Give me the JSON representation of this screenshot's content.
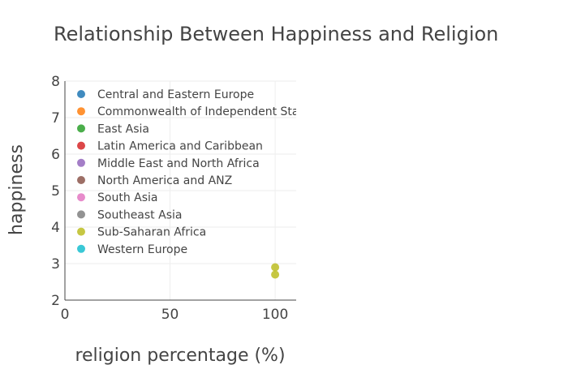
{
  "chart_data": {
    "type": "scatter",
    "title": "Relationship Between Happiness and Religion",
    "xlabel": "religion percentage (%)",
    "ylabel": "happiness",
    "xlim": [
      0,
      110
    ],
    "ylim": [
      2,
      8
    ],
    "xticks": [
      "0",
      "50",
      "100"
    ],
    "yticks": [
      "2",
      "3",
      "4",
      "5",
      "6",
      "7",
      "8"
    ],
    "grid": true,
    "legend_position": "top-left inside plot",
    "series": [
      {
        "name": "Central and Eastern Europe",
        "color": "#1f77b4",
        "points": []
      },
      {
        "name": "Commonwealth of Independent States",
        "color": "#ff7f0e",
        "points": []
      },
      {
        "name": "East Asia",
        "color": "#2ca02c",
        "points": []
      },
      {
        "name": "Latin America and Caribbean",
        "color": "#d62728",
        "points": []
      },
      {
        "name": "Middle East and North Africa",
        "color": "#9467bd",
        "points": []
      },
      {
        "name": "North America and ANZ",
        "color": "#8c564b",
        "points": []
      },
      {
        "name": "South Asia",
        "color": "#e377c2",
        "points": []
      },
      {
        "name": "Southeast Asia",
        "color": "#7f7f7f",
        "points": []
      },
      {
        "name": "Sub-Saharan Africa",
        "color": "#bcbd22",
        "points": [
          {
            "x": 100,
            "y": 2.9
          },
          {
            "x": 100,
            "y": 2.7
          }
        ]
      },
      {
        "name": "Western Europe",
        "color": "#17becf",
        "points": []
      }
    ]
  }
}
